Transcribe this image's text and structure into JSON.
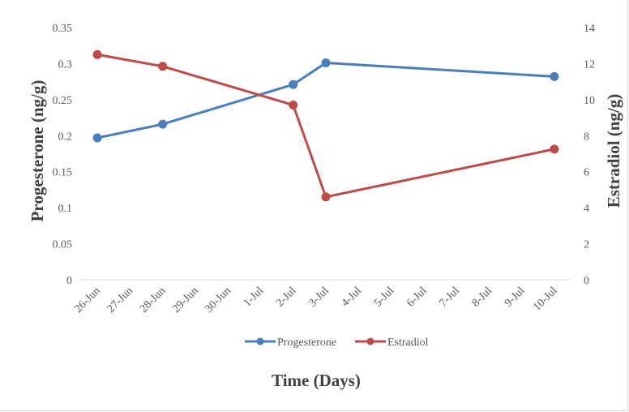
{
  "chart_data": {
    "type": "line",
    "title": "",
    "xlabel": "Time (Days)",
    "ylabel_left": "Progesterone (ng/g)",
    "ylabel_right": "Estradiol (ng/g)",
    "x_ticks": [
      "26-Jun",
      "27-Jun",
      "28-Jun",
      "29-Jun",
      "30-Jun",
      "1-Jul",
      "2-Jul",
      "3-Jul",
      "4-Jul",
      "5-Jul",
      "6-Jul",
      "7-Jul",
      "8-Jul",
      "9-Jul",
      "10-Jul"
    ],
    "y_left": {
      "min": 0,
      "max": 0.35,
      "ticks": [
        "0",
        "0.05",
        "0.1",
        "0.15",
        "0.2",
        "0.25",
        "0.3",
        "0.35"
      ]
    },
    "y_right": {
      "min": 0,
      "max": 14,
      "ticks": [
        "0",
        "2",
        "4",
        "6",
        "8",
        "10",
        "12",
        "14"
      ]
    },
    "grid": false,
    "legend_position": "bottom",
    "series": [
      {
        "name": "Progesterone",
        "axis": "left",
        "color": "#4a7ebb",
        "x": [
          "26-Jun",
          "28-Jun",
          "2-Jul",
          "3-Jul",
          "10-Jul"
        ],
        "values": [
          0.197,
          0.216,
          0.271,
          0.301,
          0.282
        ]
      },
      {
        "name": "Estradiol",
        "axis": "right",
        "color": "#be4b48",
        "x": [
          "26-Jun",
          "28-Jun",
          "2-Jul",
          "3-Jul",
          "10-Jul"
        ],
        "values": [
          12.5,
          11.85,
          9.7,
          4.6,
          7.25
        ]
      }
    ]
  }
}
